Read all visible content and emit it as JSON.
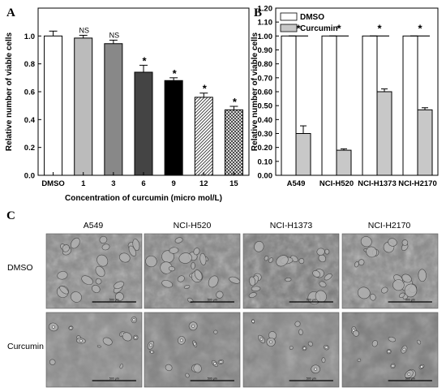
{
  "figure": {
    "panels": [
      "A",
      "B",
      "C"
    ]
  },
  "chart_data": [
    {
      "panel": "A",
      "type": "bar",
      "xlabel": "Concentration of curcumin (micro mol/L)",
      "ylabel": "Relative number of viable cells",
      "categories": [
        "DMSO",
        "1",
        "3",
        "6",
        "9",
        "12",
        "15"
      ],
      "values": [
        1.0,
        0.985,
        0.945,
        0.74,
        0.68,
        0.56,
        0.47
      ],
      "errors": [
        0.035,
        0.02,
        0.025,
        0.05,
        0.02,
        0.03,
        0.025
      ],
      "annotations": [
        "",
        "NS",
        "NS",
        "*",
        "*",
        "*",
        "*"
      ],
      "fills": [
        "#ffffff",
        "#bbbbbb",
        "#888888",
        "#444444",
        "#000000",
        "hatch-diagonal",
        "hatch-cross"
      ],
      "ylim": [
        0.0,
        1.2
      ],
      "yticks": [
        "0.0",
        "0.2",
        "0.4",
        "0.6",
        "0.8",
        "1.0"
      ]
    },
    {
      "panel": "B",
      "type": "bar",
      "xlabel": "",
      "ylabel": "Relative number of viable cells",
      "categories": [
        "A549",
        "NCI-H520",
        "NCI-H1373",
        "NCI-H2170"
      ],
      "series": [
        {
          "name": "DMSO",
          "values": [
            1.0,
            1.0,
            1.0,
            1.0
          ],
          "errors": [
            0,
            0,
            0,
            0
          ],
          "color": "#ffffff"
        },
        {
          "name": "Curcumin",
          "values": [
            0.3,
            0.18,
            0.6,
            0.47
          ],
          "errors": [
            0.055,
            0.01,
            0.02,
            0.015
          ],
          "color": "#c8c8c8"
        }
      ],
      "annotations": [
        "*",
        "*",
        "*",
        "*"
      ],
      "legend": "top-left",
      "ylim": [
        0.0,
        1.2
      ],
      "yticks": [
        "0.00",
        "0.10",
        "0.20",
        "0.30",
        "0.40",
        "0.50",
        "0.60",
        "0.70",
        "0.80",
        "0.90",
        "1.00",
        "1.10",
        "1.20"
      ],
      "yticks_shown": [
        "0.0",
        "0.1",
        "0.2",
        "0.3",
        "0.4",
        "0.5",
        "0.6",
        "0.7",
        "0.8",
        "0.9",
        "1.0",
        "1.1",
        "1.2"
      ]
    }
  ],
  "micrographs": {
    "columns": [
      "A549",
      "NCI-H520",
      "NCI-H1373",
      "NCI-H2170"
    ],
    "rows": [
      "DMSO",
      "Curcumin"
    ],
    "scale_bar_label": "500 μm"
  }
}
